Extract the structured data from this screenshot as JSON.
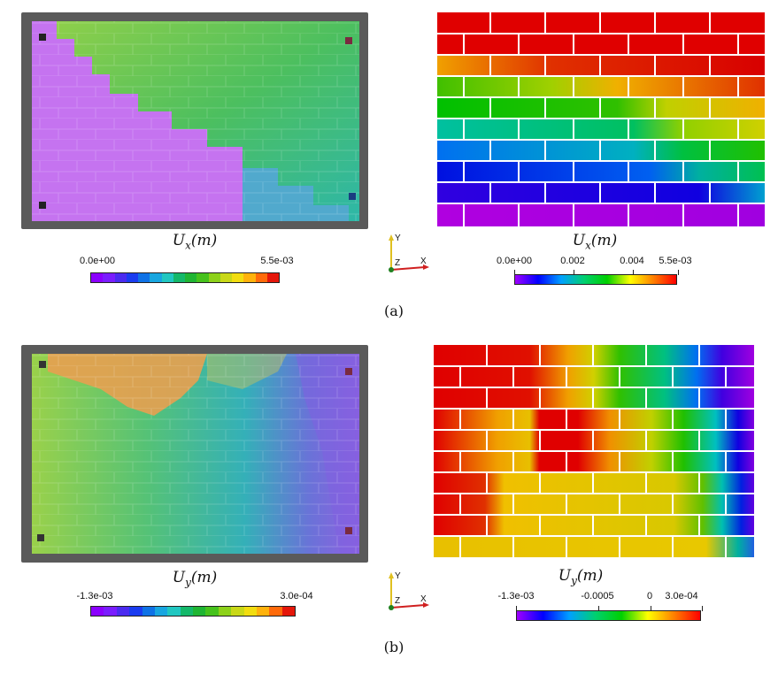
{
  "panels": [
    {
      "label": "(a)",
      "left": {
        "caption": "U_x(m)",
        "caption_sub": "x",
        "cbar_min": "0.0e+00",
        "cbar_max": "5.5e-03"
      },
      "right": {
        "caption": "U_x(m)",
        "caption_sub": "x",
        "ticks": [
          "0.0e+00",
          "0.002",
          "0.004",
          "5.5e-03"
        ]
      }
    },
    {
      "label": "(b)",
      "left": {
        "caption": "U_y(m)",
        "caption_sub": "y",
        "cbar_min": "-1.3e-03",
        "cbar_max": "3.0e-04"
      },
      "right": {
        "caption": "U_y(m)",
        "caption_sub": "y",
        "ticks": [
          "-1.3e-03",
          "-0.0005",
          "0",
          "3.0e-04"
        ]
      }
    }
  ],
  "triad": {
    "y": "Y",
    "z": "Z",
    "x": "X"
  },
  "colors": {
    "discrete_bar": [
      "#8b00ff",
      "#7a1dff",
      "#4b2bf0",
      "#1a3cf0",
      "#0f72e6",
      "#18a6e0",
      "#21c7c1",
      "#14b86a",
      "#1fb533",
      "#46c21c",
      "#8dd11a",
      "#c9d818",
      "#f2dd10",
      "#ffb20c",
      "#ff6a0a",
      "#e5170a"
    ],
    "rainbow": [
      "#a000ff",
      "#0000ff",
      "#00a0ff",
      "#00d070",
      "#00d000",
      "#ffff00",
      "#ff8000",
      "#ff0000"
    ],
    "frame": "#5a5a5a"
  }
}
